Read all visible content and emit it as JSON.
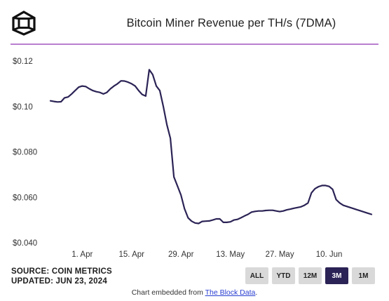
{
  "title": "Bitcoin Miner Revenue per TH/s (7DMA)",
  "footer": {
    "source": "SOURCE: COIN METRICS",
    "updated": "UPDATED: JUN 23, 2024",
    "embed_prefix": "Chart embedded from ",
    "embed_link": "The Block Data",
    "embed_suffix": "."
  },
  "range_buttons": [
    {
      "label": "ALL",
      "active": false
    },
    {
      "label": "YTD",
      "active": false
    },
    {
      "label": "12M",
      "active": false
    },
    {
      "label": "3M",
      "active": true
    },
    {
      "label": "1M",
      "active": false
    }
  ],
  "colors": {
    "line": "#2b2355",
    "divider": "#b97fd0",
    "active_button": "#2b2355",
    "button": "#d9d9d9"
  },
  "chart_data": {
    "type": "line",
    "title": "Bitcoin Miner Revenue per TH/s (7DMA)",
    "x_start": "2024-03-23",
    "x_end": "2024-06-23",
    "x_tick_labels": [
      "1. Apr",
      "15. Apr",
      "29. Apr",
      "13. May",
      "27. May",
      "10. Jun"
    ],
    "y_tick_labels": [
      "$0.040",
      "$0.060",
      "$0.080",
      "$0.10",
      "$0.12"
    ],
    "ylim": [
      0.04,
      0.12
    ],
    "grid": false,
    "series": [
      {
        "values": [
          [
            "2024-03-23",
            0.1025
          ],
          [
            "2024-03-24",
            0.1022
          ],
          [
            "2024-03-25",
            0.102
          ],
          [
            "2024-03-26",
            0.1021
          ],
          [
            "2024-03-27",
            0.1038
          ],
          [
            "2024-03-28",
            0.1042
          ],
          [
            "2024-03-29",
            0.1055
          ],
          [
            "2024-03-30",
            0.107
          ],
          [
            "2024-03-31",
            0.1085
          ],
          [
            "2024-04-01",
            0.109
          ],
          [
            "2024-04-02",
            0.1088
          ],
          [
            "2024-04-03",
            0.1078
          ],
          [
            "2024-04-04",
            0.107
          ],
          [
            "2024-04-05",
            0.1065
          ],
          [
            "2024-04-06",
            0.1062
          ],
          [
            "2024-04-07",
            0.1055
          ],
          [
            "2024-04-08",
            0.1062
          ],
          [
            "2024-04-09",
            0.1078
          ],
          [
            "2024-04-10",
            0.109
          ],
          [
            "2024-04-11",
            0.11
          ],
          [
            "2024-04-12",
            0.1113
          ],
          [
            "2024-04-13",
            0.1112
          ],
          [
            "2024-04-14",
            0.1107
          ],
          [
            "2024-04-15",
            0.11
          ],
          [
            "2024-04-16",
            0.109
          ],
          [
            "2024-04-17",
            0.107
          ],
          [
            "2024-04-18",
            0.1053
          ],
          [
            "2024-04-19",
            0.1046
          ],
          [
            "2024-04-20",
            0.1162
          ],
          [
            "2024-04-21",
            0.114
          ],
          [
            "2024-04-22",
            0.109
          ],
          [
            "2024-04-23",
            0.107
          ],
          [
            "2024-04-24",
            0.1
          ],
          [
            "2024-04-25",
            0.092
          ],
          [
            "2024-04-26",
            0.086
          ],
          [
            "2024-04-27",
            0.069
          ],
          [
            "2024-04-28",
            0.065
          ],
          [
            "2024-04-29",
            0.061
          ],
          [
            "2024-04-30",
            0.055
          ],
          [
            "2024-05-01",
            0.051
          ],
          [
            "2024-05-02",
            0.0495
          ],
          [
            "2024-05-03",
            0.0487
          ],
          [
            "2024-05-04",
            0.0485
          ],
          [
            "2024-05-05",
            0.0494
          ],
          [
            "2024-05-06",
            0.0495
          ],
          [
            "2024-05-07",
            0.0496
          ],
          [
            "2024-05-08",
            0.05
          ],
          [
            "2024-05-09",
            0.0505
          ],
          [
            "2024-05-10",
            0.0505
          ],
          [
            "2024-05-11",
            0.049
          ],
          [
            "2024-05-12",
            0.049
          ],
          [
            "2024-05-13",
            0.0492
          ],
          [
            "2024-05-14",
            0.05
          ],
          [
            "2024-05-15",
            0.0503
          ],
          [
            "2024-05-16",
            0.051
          ],
          [
            "2024-05-17",
            0.0518
          ],
          [
            "2024-05-18",
            0.0525
          ],
          [
            "2024-05-19",
            0.0535
          ],
          [
            "2024-05-20",
            0.0538
          ],
          [
            "2024-05-21",
            0.054
          ],
          [
            "2024-05-22",
            0.054
          ],
          [
            "2024-05-23",
            0.0542
          ],
          [
            "2024-05-24",
            0.0543
          ],
          [
            "2024-05-25",
            0.0543
          ],
          [
            "2024-05-26",
            0.054
          ],
          [
            "2024-05-27",
            0.0537
          ],
          [
            "2024-05-28",
            0.054
          ],
          [
            "2024-05-29",
            0.0545
          ],
          [
            "2024-05-30",
            0.0548
          ],
          [
            "2024-05-31",
            0.0552
          ],
          [
            "2024-06-01",
            0.0555
          ],
          [
            "2024-06-02",
            0.0558
          ],
          [
            "2024-06-03",
            0.0565
          ],
          [
            "2024-06-04",
            0.0575
          ],
          [
            "2024-06-05",
            0.062
          ],
          [
            "2024-06-06",
            0.0638
          ],
          [
            "2024-06-07",
            0.0647
          ],
          [
            "2024-06-08",
            0.0652
          ],
          [
            "2024-06-09",
            0.0652
          ],
          [
            "2024-06-10",
            0.0648
          ],
          [
            "2024-06-11",
            0.0635
          ],
          [
            "2024-06-12",
            0.059
          ],
          [
            "2024-06-13",
            0.0575
          ],
          [
            "2024-06-14",
            0.0565
          ],
          [
            "2024-06-15",
            0.056
          ],
          [
            "2024-06-16",
            0.0555
          ],
          [
            "2024-06-17",
            0.055
          ],
          [
            "2024-06-18",
            0.0545
          ],
          [
            "2024-06-19",
            0.054
          ],
          [
            "2024-06-20",
            0.0535
          ],
          [
            "2024-06-21",
            0.053
          ],
          [
            "2024-06-22",
            0.0525
          ]
        ]
      }
    ]
  }
}
